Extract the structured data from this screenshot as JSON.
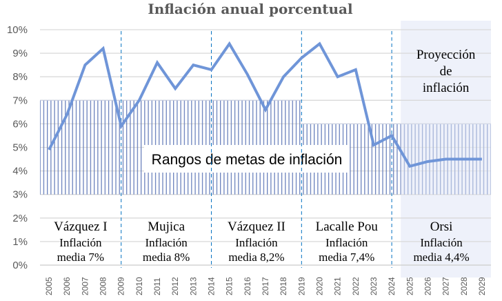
{
  "chart_data": {
    "type": "line",
    "title": "Inflación anual  porcentual",
    "xlabel": "",
    "ylabel": "",
    "ylim": [
      0,
      10
    ],
    "yticks": [
      "0%",
      "1%",
      "2%",
      "3%",
      "4%",
      "5%",
      "6%",
      "7%",
      "8%",
      "9%",
      "10%"
    ],
    "grid": true,
    "categories": [
      "2005",
      "2006",
      "2007",
      "2008",
      "2009",
      "2010",
      "2011",
      "2012",
      "2013",
      "2014",
      "2015",
      "2016",
      "2017",
      "2018",
      "2019",
      "2020",
      "2021",
      "2022",
      "2023",
      "2024",
      "2025",
      "2026",
      "2027",
      "2028",
      "2029"
    ],
    "series": [
      {
        "name": "Inflación anual",
        "color": "#6f95d8",
        "values": [
          4.9,
          6.4,
          8.5,
          9.2,
          5.9,
          7.0,
          8.6,
          7.5,
          8.5,
          8.3,
          9.4,
          8.1,
          6.6,
          8.0,
          8.8,
          9.4,
          8.0,
          8.3,
          5.1,
          5.5,
          4.2,
          4.4,
          4.5,
          4.5,
          4.5
        ]
      }
    ],
    "target_ranges": [
      {
        "from": "2005",
        "to": "2019",
        "low": 3,
        "high": 7
      },
      {
        "from": "2019",
        "to": "2029",
        "low": 3,
        "high": 6
      }
    ],
    "target_label": "Rangos de metas de inflación",
    "projection": {
      "from": "2025",
      "to": "2029",
      "label": [
        "Proyección",
        "de",
        "inflación"
      ],
      "color": "#eef1fa"
    },
    "dividers": [
      "2009",
      "2014",
      "2019",
      "2024"
    ],
    "periods": [
      {
        "name": "Vázquez I",
        "line1": "Inflación",
        "line2": "media 7%",
        "from": "2005",
        "to": "2009"
      },
      {
        "name": "Mujica",
        "line1": "Inflación",
        "line2": "media 8%",
        "from": "2009",
        "to": "2014"
      },
      {
        "name": "Vázquez II",
        "line1": "Inflación",
        "line2": "media 8,2%",
        "from": "2014",
        "to": "2019"
      },
      {
        "name": "Lacalle Pou",
        "line1": "Inflación",
        "line2": "media 7,4%",
        "from": "2019",
        "to": "2024"
      },
      {
        "name": "Orsi",
        "line1": "Inflación",
        "line2": "media 4,4%",
        "from": "2024",
        "to": "2029"
      }
    ]
  }
}
